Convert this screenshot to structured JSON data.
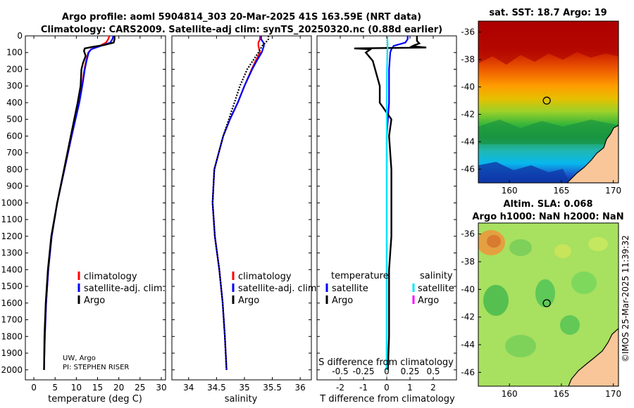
{
  "header": {
    "title_line1": "Argo profile: aoml 5904814_303 20-Mar-2025 41S 163.59E (NRT data)",
    "title_line2": "Climatology: CARS2009. Satellite-adj clim: synTS_20250320.nc (0.88d earlier)"
  },
  "colors": {
    "climatology": "#ff0000",
    "satellite": "#0000ff",
    "argo": "#000000",
    "sat_t": "#0000ff",
    "sat_s": "#00e5ff",
    "argo_s": "#ff00ff",
    "land": "#f9c699"
  },
  "chart_data": [
    {
      "id": "temperature",
      "type": "line",
      "xlabel": "temperature (deg C)",
      "xlim": [
        -2,
        31
      ],
      "xticks": [
        0,
        5,
        10,
        15,
        20,
        25,
        30
      ],
      "xtick_labels": [
        "0",
        "5",
        "10",
        "15",
        "20",
        "25",
        "30"
      ],
      "ylabel": "depth",
      "ylim": [
        0,
        2060
      ],
      "yticks": [
        0,
        100,
        200,
        300,
        400,
        500,
        600,
        700,
        800,
        900,
        1000,
        1100,
        1200,
        1300,
        1400,
        1500,
        1600,
        1700,
        1800,
        1900,
        2000
      ],
      "ytick_labels": [
        "0",
        "100",
        "200",
        "300",
        "400",
        "500",
        "600",
        "700",
        "800",
        "900",
        "1000",
        "1100",
        "1200",
        "1300",
        "1400",
        "1500",
        "1600",
        "1700",
        "1800",
        "1900",
        "2000"
      ],
      "legend": [
        "climatology",
        "satellite-adj. clim.",
        "Argo"
      ],
      "annotations": [
        "UW, Argo",
        "PI: STEPHEN RISER"
      ],
      "series": [
        {
          "name": "climatology",
          "depth": [
            0,
            20,
            40,
            60,
            80,
            100,
            150,
            200,
            300,
            400,
            600,
            800,
            1000,
            1200,
            1400,
            1600,
            1800,
            2000
          ],
          "values": [
            17.8,
            17.5,
            17.0,
            15.5,
            13.5,
            12.8,
            12.3,
            11.9,
            11.3,
            10.6,
            8.9,
            7.2,
            5.5,
            4.2,
            3.4,
            2.9,
            2.6,
            2.4
          ]
        },
        {
          "name": "satellite-adj. clim.",
          "depth": [
            0,
            20,
            40,
            60,
            80,
            100,
            150,
            200,
            300,
            400,
            600,
            800,
            1000,
            1200,
            1400,
            1600,
            1800,
            2000
          ],
          "values": [
            18.7,
            18.5,
            18.0,
            15.8,
            13.5,
            12.9,
            12.4,
            12.0,
            11.4,
            10.7,
            8.9,
            7.2,
            5.5,
            4.2,
            3.4,
            2.9,
            2.6,
            2.4
          ]
        },
        {
          "name": "Argo",
          "depth": [
            0,
            20,
            40,
            55,
            65,
            75,
            90,
            120,
            160,
            200,
            300,
            400,
            600,
            800,
            1000,
            1200,
            1400,
            1600,
            1800,
            2000
          ],
          "values": [
            19.0,
            19.0,
            18.8,
            16.5,
            14.0,
            12.0,
            11.8,
            12.2,
            11.6,
            11.2,
            11.0,
            10.3,
            8.7,
            7.1,
            5.5,
            4.1,
            3.3,
            2.8,
            2.5,
            2.4
          ]
        }
      ]
    },
    {
      "id": "salinity",
      "type": "line",
      "xlabel": "salinity",
      "xlim": [
        33.7,
        36.2
      ],
      "xticks": [
        34,
        34.5,
        35,
        35.5,
        36
      ],
      "xtick_labels": [
        "34",
        "34.5",
        "35",
        "35.5",
        "36"
      ],
      "ylim": [
        0,
        2060
      ],
      "legend": [
        "climatology",
        "satellite-adj. clim.",
        "Argo"
      ],
      "series": [
        {
          "name": "climatology",
          "depth": [
            0,
            20,
            40,
            60,
            100,
            150,
            200,
            300,
            400,
            500,
            600,
            800,
            1000,
            1200,
            1400,
            1600,
            1800,
            2000
          ],
          "values": [
            35.28,
            35.28,
            35.25,
            35.25,
            35.28,
            35.2,
            35.13,
            35.0,
            34.88,
            34.74,
            34.62,
            34.46,
            34.43,
            34.47,
            34.55,
            34.61,
            34.65,
            34.68
          ]
        },
        {
          "name": "satellite-adj. clim.",
          "depth": [
            0,
            20,
            40,
            60,
            100,
            150,
            200,
            300,
            400,
            500,
            600,
            800,
            1000,
            1200,
            1400,
            1600,
            1800,
            2000
          ],
          "values": [
            35.3,
            35.3,
            35.34,
            35.35,
            35.31,
            35.22,
            35.14,
            35.0,
            34.88,
            34.74,
            34.62,
            34.46,
            34.43,
            34.47,
            34.55,
            34.61,
            34.65,
            34.68
          ]
        },
        {
          "name": "Argo",
          "depth": [
            0,
            20,
            40,
            60,
            100,
            150,
            200,
            300,
            400,
            500,
            600,
            800,
            1000,
            1200,
            1400,
            1600,
            1800,
            2000
          ],
          "values": [
            35.43,
            35.43,
            35.38,
            35.32,
            35.25,
            35.15,
            35.05,
            34.92,
            34.82,
            34.72,
            34.62,
            34.46,
            34.43,
            34.47,
            34.55,
            34.61,
            34.65,
            34.68
          ]
        }
      ]
    },
    {
      "id": "differences",
      "type": "line",
      "xlabel": "T difference from climatology",
      "xlabel_top": "S difference from climatology",
      "xlim": [
        -3,
        3
      ],
      "xticks": [
        -2,
        -1,
        0,
        1,
        2
      ],
      "xtick_labels": [
        "-2",
        "-1",
        "0",
        "1",
        "2"
      ],
      "s_xtick_labels": [
        "-0.5",
        "-0.25",
        "0",
        "0.25",
        "0.5"
      ],
      "ylim": [
        0,
        2060
      ],
      "legend_headers": [
        "temperature",
        "salinity"
      ],
      "legend_left": [
        "satellite",
        "Argo"
      ],
      "legend_right": [
        "satellite",
        "Argo"
      ],
      "series": [
        {
          "name": "temperature satellite",
          "depth": [
            0,
            20,
            40,
            60,
            80,
            100,
            200,
            300,
            400,
            500,
            600,
            800,
            1000,
            1200,
            1400,
            1600,
            1800,
            2000
          ],
          "values": [
            0.9,
            0.9,
            0.8,
            0.3,
            0.2,
            0.15,
            0.1,
            0.1,
            0.1,
            0.05,
            0,
            0,
            0,
            0,
            0,
            0,
            0,
            0
          ]
        },
        {
          "name": "temperature Argo",
          "depth": [
            0,
            30,
            45,
            55,
            62,
            70,
            75,
            80,
            100,
            150,
            200,
            300,
            400,
            500,
            600,
            800,
            1000,
            1200,
            1400,
            1600,
            1800,
            2000
          ],
          "values": [
            1.3,
            1.3,
            1.4,
            1.2,
            1.1,
            1.7,
            -1.4,
            -0.7,
            -0.9,
            -0.6,
            -0.5,
            -0.3,
            -0.3,
            0.2,
            0.1,
            0.2,
            0.2,
            0.2,
            0.1,
            0.1,
            0.1,
            0.05
          ]
        },
        {
          "name": "salinity satellite",
          "depth": [
            0,
            50,
            100,
            200,
            400,
            600,
            800,
            1000,
            1200,
            1400,
            1600,
            1800,
            2000
          ],
          "values": [
            0.02,
            0.04,
            0.03,
            0.01,
            0.0,
            0.0,
            0.0,
            0.0,
            0.0,
            0.0,
            0.0,
            0.0,
            0.0
          ]
        },
        {
          "name": "salinity Argo",
          "depth": [],
          "values": []
        }
      ]
    },
    {
      "id": "sst_map",
      "type": "heatmap",
      "title": "sat. SST: 18.7 Argo: 19",
      "xticks": [
        160,
        165,
        170
      ],
      "yticks": [
        -36,
        -38,
        -40,
        -42,
        -44,
        -46
      ],
      "xlim": [
        157,
        170.5
      ],
      "ylim": [
        -47,
        -35.2
      ],
      "marker": {
        "lon": 163.59,
        "lat": -41
      }
    },
    {
      "id": "sla_map",
      "type": "heatmap",
      "title_line1": "Altim. SLA: 0.068",
      "title_line2": "Argo h1000: NaN h2000: NaN",
      "xticks": [
        160,
        165,
        170
      ],
      "yticks": [
        -36,
        -38,
        -40,
        -42,
        -44,
        -46
      ],
      "xlim": [
        157,
        170.5
      ],
      "ylim": [
        -47,
        -35.2
      ],
      "marker": {
        "lon": 163.59,
        "lat": -41
      }
    }
  ],
  "footer_stamp": "©IMOS 25-Mar-2025 11:39:32"
}
